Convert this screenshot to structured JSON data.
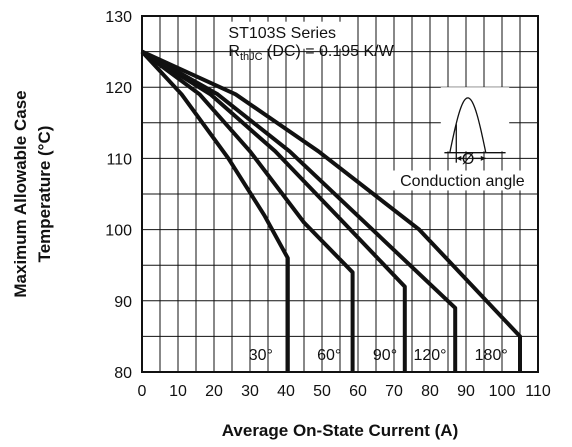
{
  "chart_data": {
    "type": "line",
    "xlabel": "Average On-State Current (A)",
    "ylabel_lines": [
      "Maximum Allowable Case",
      "Temperature (°C)"
    ],
    "xlim": [
      0,
      110
    ],
    "ylim": [
      80,
      130
    ],
    "x_ticks": [
      "0",
      "10",
      "20",
      "30",
      "40",
      "50",
      "60",
      "70",
      "80",
      "90",
      "100",
      "110"
    ],
    "y_ticks": [
      "80",
      "90",
      "100",
      "110",
      "120",
      "130"
    ],
    "grid": true,
    "annotation": {
      "series_name": "ST103S Series",
      "r_main": "R",
      "r_sub": "thJC",
      "r_rest": " (DC) = 0.195 K/W",
      "inset_symbol": "Ø",
      "inset_caption": "Conduction angle"
    },
    "series": [
      {
        "name": "30°",
        "points": [
          [
            0,
            125
          ],
          [
            11,
            119
          ],
          [
            24,
            110
          ],
          [
            34,
            102
          ],
          [
            40.5,
            96
          ],
          [
            40.5,
            80
          ]
        ]
      },
      {
        "name": "60°",
        "points": [
          [
            0,
            125
          ],
          [
            16,
            119
          ],
          [
            30,
            111
          ],
          [
            45,
            101
          ],
          [
            58.5,
            94
          ],
          [
            58.5,
            80
          ]
        ]
      },
      {
        "name": "90°",
        "points": [
          [
            0,
            125
          ],
          [
            19,
            119
          ],
          [
            37,
            111
          ],
          [
            56,
            101
          ],
          [
            73,
            92
          ],
          [
            73,
            80
          ]
        ]
      },
      {
        "name": "120°",
        "points": [
          [
            0,
            125
          ],
          [
            21,
            119
          ],
          [
            41,
            111
          ],
          [
            64,
            100
          ],
          [
            87,
            89
          ],
          [
            87,
            80
          ]
        ]
      },
      {
        "name": "180°",
        "points": [
          [
            0,
            125
          ],
          [
            26,
            119
          ],
          [
            49,
            111
          ],
          [
            77,
            100
          ],
          [
            105,
            85
          ],
          [
            105,
            80
          ]
        ]
      }
    ],
    "series_labels": [
      {
        "text": "30°",
        "x": 33,
        "y": 82.5
      },
      {
        "text": "60°",
        "x": 52,
        "y": 82.5
      },
      {
        "text": "90°",
        "x": 67.5,
        "y": 82.5
      },
      {
        "text": "120°",
        "x": 80,
        "y": 82.5
      },
      {
        "text": "180°",
        "x": 97,
        "y": 82.5
      }
    ]
  }
}
